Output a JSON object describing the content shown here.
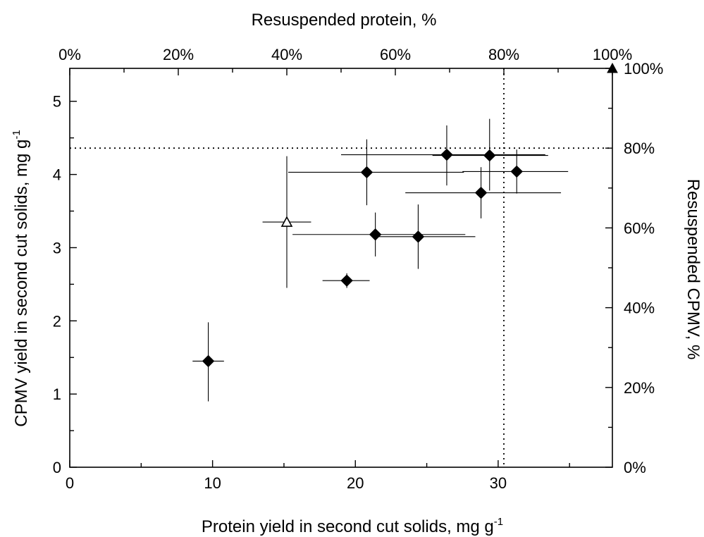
{
  "chart_data": {
    "type": "scatter",
    "bottom_axis": {
      "label": "Protein yield in second cut solids, mg g",
      "label_superscript": "-1",
      "range": [
        0,
        38
      ],
      "major_ticks": [
        0,
        10,
        20,
        30
      ],
      "tick_labels": [
        "0",
        "10",
        "20",
        "30"
      ],
      "minor_step": 5
    },
    "left_axis": {
      "label": "CPMV yield in second cut solids, mg g",
      "label_superscript": "-1",
      "range": [
        0,
        5.45
      ],
      "major_ticks": [
        0,
        1,
        2,
        3,
        4,
        5
      ],
      "tick_labels": [
        "0",
        "1",
        "2",
        "3",
        "4",
        "5"
      ],
      "minor_step": 0.5
    },
    "top_axis": {
      "label": "Resuspended protein, %",
      "range": [
        0,
        100
      ],
      "major_ticks": [
        0,
        20,
        40,
        60,
        80,
        100
      ],
      "tick_labels": [
        "0%",
        "20%",
        "40%",
        "60%",
        "80%",
        "100%"
      ],
      "minor_step": 10
    },
    "right_axis": {
      "label": "Resuspended CPMV, %",
      "range": [
        0,
        100
      ],
      "major_ticks": [
        0,
        20,
        40,
        60,
        80,
        100
      ],
      "tick_labels": [
        "0%",
        "20%",
        "40%",
        "60%",
        "80%",
        "100%"
      ],
      "minor_step": 10
    },
    "reference_lines": {
      "horizontal_cpmv_percent": 80,
      "vertical_protein_percent": 80
    },
    "grid": false,
    "series": [
      {
        "marker": "filled-diamond",
        "points": [
          {
            "x": 9.7,
            "y": 1.45,
            "xerr": 1.1,
            "yerr": [
              0.55,
              0.53
            ]
          },
          {
            "x": 19.4,
            "y": 2.55,
            "xerr": [
              1.7,
              1.6
            ],
            "yerr": 0.1
          },
          {
            "x": 21.4,
            "y": 3.18,
            "xerr": [
              5.8,
              6.3
            ],
            "yerr": 0.3
          },
          {
            "x": 24.4,
            "y": 3.15,
            "xerr": [
              3.0,
              4.0
            ],
            "yerr": 0.44
          },
          {
            "x": 20.8,
            "y": 4.03,
            "xerr": [
              5.5,
              6.8
            ],
            "yerr": [
              0.45,
              0.45
            ]
          },
          {
            "x": 26.4,
            "y": 4.27,
            "xerr": [
              7.4,
              6.9
            ],
            "yerr": [
              0.42,
              0.4
            ]
          },
          {
            "x": 29.4,
            "y": 4.26,
            "xerr": [
              4.0,
              4.1
            ],
            "yerr": [
              0.48,
              0.5
            ]
          },
          {
            "x": 28.8,
            "y": 3.75,
            "xerr": [
              5.3,
              5.6
            ],
            "yerr": [
              0.35,
              0.35
            ]
          },
          {
            "x": 31.3,
            "y": 4.04,
            "xerr": [
              3.8,
              3.6
            ],
            "yerr": [
              0.3,
              0.3
            ]
          }
        ]
      },
      {
        "marker": "open-triangle",
        "points": [
          {
            "x": 15.2,
            "y": 3.35,
            "xerr": [
              1.7,
              1.7
            ],
            "yerr": [
              0.9,
              0.9
            ]
          }
        ]
      },
      {
        "marker": "filled-triangle",
        "points": [
          {
            "x": 38.0,
            "y": 5.45,
            "xerr": [
              0.9,
              0
            ],
            "yerr": [
              0.55,
              0
            ]
          }
        ]
      }
    ]
  }
}
